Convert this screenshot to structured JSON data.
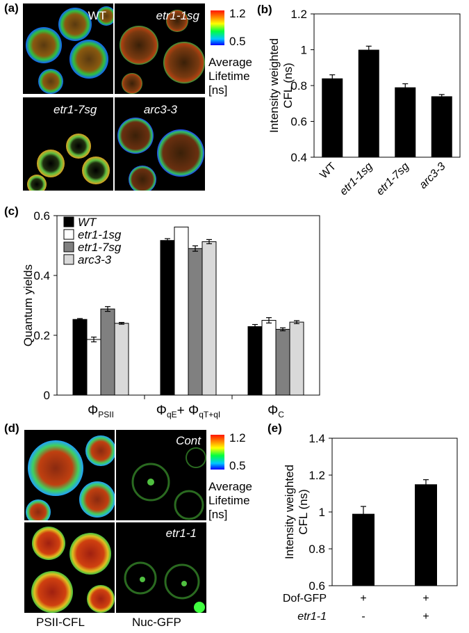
{
  "panels": {
    "a": "(a)",
    "b": "(b)",
    "c": "(c)",
    "d": "(d)",
    "e": "(e)"
  },
  "panel_a": {
    "images": [
      "WT",
      "etr1-1sg",
      "etr1-7sg",
      "arc3-3"
    ],
    "scale": {
      "max": "1.2",
      "min": "0.5",
      "title_lines": [
        "Average",
        "Lifetime",
        "[ns]"
      ]
    }
  },
  "panel_d": {
    "images": [
      "Cont",
      "etr1-1"
    ],
    "captions": [
      "PSII-CFL",
      "Nuc-GFP"
    ],
    "scale": {
      "max": "1.2",
      "min": "0.5",
      "title_lines": [
        "Average",
        "Lifetime",
        "[ns]"
      ]
    }
  },
  "colors": {
    "bar_black": "#000000",
    "bar_white": "#ffffff",
    "bar_dark_gray": "#808080",
    "bar_light_gray": "#d9d9d9"
  },
  "chart_data": [
    {
      "id": "b",
      "type": "bar",
      "ylabel_lines": [
        "Intensity weighted",
        "CFL (ns)"
      ],
      "categories": [
        "WT",
        "etr1-1sg",
        "etr1-7sg",
        "arc3-3"
      ],
      "values": [
        0.84,
        1.0,
        0.79,
        0.74
      ],
      "errors": [
        0.02,
        0.02,
        0.02,
        0.01
      ],
      "ylim": [
        0.4,
        1.2
      ],
      "yticks": [
        "0.4",
        "0.6",
        "0.8",
        "1",
        "1.2"
      ],
      "ytick_values": [
        0.4,
        0.6,
        0.8,
        1.0,
        1.2
      ]
    },
    {
      "id": "c",
      "type": "bar",
      "ylabel": "Quantum yields",
      "groups": [
        "ΦPSII",
        "ΦqE+ ΦqT+qI",
        "ΦC"
      ],
      "series": [
        {
          "name": "WT",
          "values": [
            0.253,
            0.517,
            0.229
          ],
          "errors": [
            0.003,
            0.006,
            0.007
          ]
        },
        {
          "name": "etr1-1sg",
          "values": [
            0.186,
            0.562,
            0.25
          ],
          "errors": [
            0.008,
            0.0,
            0.009
          ]
        },
        {
          "name": "etr1-7sg",
          "values": [
            0.288,
            0.49,
            0.22
          ],
          "errors": [
            0.008,
            0.009,
            0.005
          ]
        },
        {
          "name": "arc3-3",
          "values": [
            0.24,
            0.513,
            0.244
          ],
          "errors": [
            0.003,
            0.007,
            0.005
          ]
        }
      ],
      "ylim": [
        0,
        0.6
      ],
      "yticks": [
        "0",
        "0.2",
        "0.4",
        "0.6"
      ],
      "ytick_values": [
        0,
        0.2,
        0.4,
        0.6
      ]
    },
    {
      "id": "e",
      "type": "bar",
      "ylabel_lines": [
        "Intensity weighted",
        "CFL (ns)"
      ],
      "values": [
        0.99,
        1.15
      ],
      "errors": [
        0.04,
        0.025
      ],
      "ylim": [
        0.6,
        1.4
      ],
      "yticks": [
        "0.6",
        "0.8",
        "1",
        "1.2",
        "1.4"
      ],
      "ytick_values": [
        0.6,
        0.8,
        1.0,
        1.2,
        1.4
      ],
      "row_labels": [
        "Dof-GFP",
        "etr1-1"
      ],
      "row_values": [
        [
          "+",
          "+"
        ],
        [
          "-",
          "+"
        ]
      ]
    }
  ]
}
